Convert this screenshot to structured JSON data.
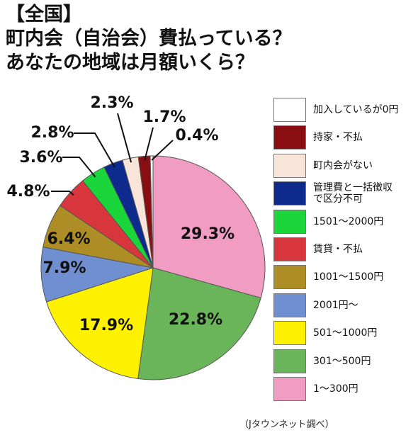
{
  "header": {
    "title_lines": [
      "【全国】",
      "町内会（自治会）費払っている？",
      "あなたの地域は月額いくら？"
    ]
  },
  "chart_data": {
    "type": "pie",
    "title": "【全国】町内会（自治会）費払っている？あなたの地域は月額いくら？",
    "start_angle_deg": 0,
    "direction": "clockwise",
    "legend_position": "right",
    "slices": [
      {
        "label": "1〜300円",
        "value": 29.3,
        "display": "29.3%",
        "color": "#f19cc3"
      },
      {
        "label": "301〜500円",
        "value": 22.8,
        "display": "22.8%",
        "color": "#6ab45a"
      },
      {
        "label": "501〜1000円",
        "value": 17.9,
        "display": "17.9%",
        "color": "#fff200"
      },
      {
        "label": "2001円〜",
        "value": 7.9,
        "display": "7.9%",
        "color": "#6f8fd0"
      },
      {
        "label": "1001〜1500円",
        "value": 6.4,
        "display": "6.4%",
        "color": "#ad8d26"
      },
      {
        "label": "賃貸・不払",
        "value": 4.8,
        "display": "4.8%",
        "color": "#d8363d"
      },
      {
        "label": "1501〜2000円",
        "value": 3.6,
        "display": "3.6%",
        "color": "#1ad63b"
      },
      {
        "label": "管理費と一括徴収で区分不可",
        "value": 2.8,
        "display": "2.8%",
        "color": "#0e2a8c"
      },
      {
        "label": "町内会がない",
        "value": 2.3,
        "display": "2.3%",
        "color": "#f8e4d8"
      },
      {
        "label": "持家・不払",
        "value": 1.7,
        "display": "1.7%",
        "color": "#8a0d12"
      },
      {
        "label": "加入しているが0円",
        "value": 0.4,
        "display": "0.4%",
        "color": "#ffffff"
      }
    ]
  },
  "legend_order": [
    "加入しているが0円",
    "持家・不払",
    "町内会がない",
    "管理費と一括徴収で区分不可",
    "1501〜2000円",
    "賃貸・不払",
    "1001〜1500円",
    "2001円〜",
    "501〜1000円",
    "301〜500円",
    "1〜300円"
  ],
  "legend_display": {
    "管理費と一括徴収で区分不可": [
      "管理費と一括徴収",
      "で区分不可"
    ]
  },
  "source": "（Jタウンネット調べ）"
}
